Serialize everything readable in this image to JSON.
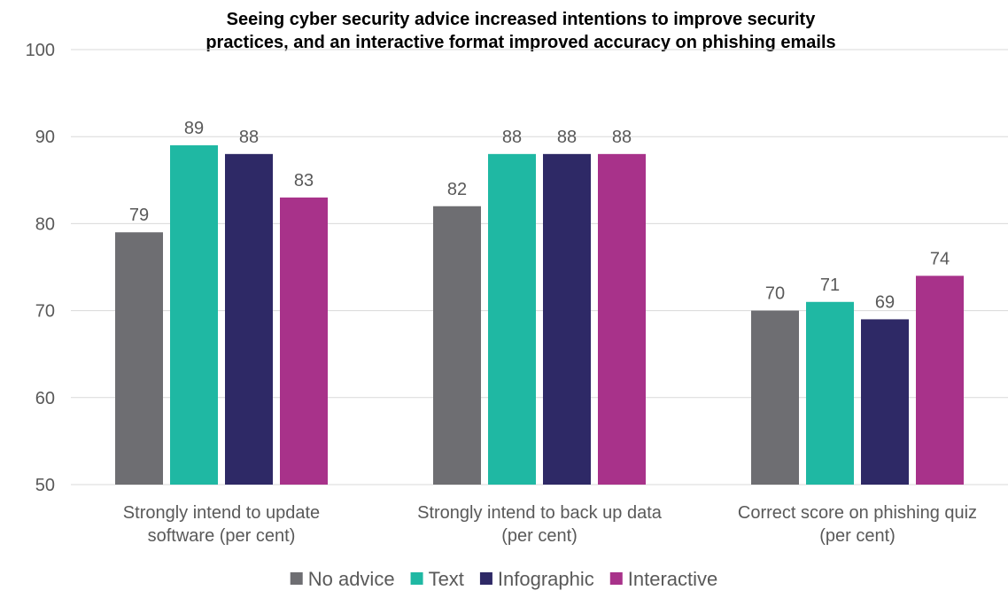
{
  "chart_data": {
    "type": "bar",
    "title_lines": [
      "Seeing cyber security advice increased intentions to improve security",
      "practices, and an interactive format improved accuracy on phishing emails"
    ],
    "categories": [
      [
        "Strongly intend to update",
        "software (per cent)"
      ],
      [
        "Strongly intend to back up data",
        "(per cent)"
      ],
      [
        "Correct score on phishing quiz",
        "(per cent)"
      ]
    ],
    "series": [
      {
        "name": "No advice",
        "color": "#6e6e72",
        "values": [
          79,
          82,
          70
        ]
      },
      {
        "name": "Text",
        "color": "#1fb8a3",
        "values": [
          89,
          88,
          71
        ]
      },
      {
        "name": "Infographic",
        "color": "#2e2966",
        "values": [
          88,
          88,
          69
        ]
      },
      {
        "name": "Interactive",
        "color": "#a8328a",
        "values": [
          83,
          88,
          74
        ]
      }
    ],
    "ylim": [
      50,
      100
    ],
    "yticks": [
      50,
      60,
      70,
      80,
      90,
      100
    ],
    "grid": true,
    "legend_position": "bottom"
  }
}
